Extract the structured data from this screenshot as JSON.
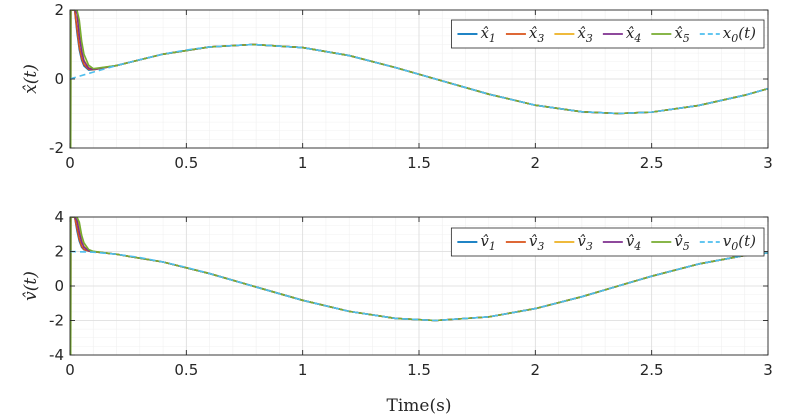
{
  "chart_data": [
    {
      "type": "line",
      "ylabel": "x̂(t)",
      "xlabel": "",
      "xlim": [
        0,
        3
      ],
      "ylim": [
        -2,
        2
      ],
      "xticks": [
        "0",
        "0.5",
        "1",
        "1.5",
        "2",
        "2.5",
        "3"
      ],
      "yticks": [
        "-2",
        "0",
        "2"
      ],
      "grid": true,
      "legend_position": "top-right, single row",
      "reference_function": "x0(t) = sin(2t)",
      "series": [
        {
          "name": "x̂1",
          "color": "#0072BD",
          "style": "solid",
          "x": [
            0,
            0.003,
            0.0035,
            0.01,
            0.02,
            0.03,
            0.04,
            0.05,
            0.06,
            0.08,
            0.1,
            0.2,
            0.4,
            0.6,
            0.785,
            1.0,
            1.2,
            1.4,
            1.571,
            1.8,
            2.0,
            2.2,
            2.356,
            2.5,
            2.7,
            2.9,
            3.0
          ],
          "y": [
            -2,
            -2,
            2,
            2,
            2,
            1.35,
            0.85,
            0.55,
            0.38,
            0.26,
            0.27,
            0.39,
            0.72,
            0.93,
            1.0,
            0.91,
            0.68,
            0.33,
            0.0,
            -0.44,
            -0.76,
            -0.95,
            -1.0,
            -0.96,
            -0.77,
            -0.47,
            -0.28
          ]
        },
        {
          "name": "x̂3",
          "color": "#D95319",
          "style": "solid",
          "x": [
            0,
            0.003,
            0.0035,
            0.01,
            0.02,
            0.03,
            0.04,
            0.05,
            0.06,
            0.08,
            0.1,
            0.2,
            0.4,
            0.6,
            0.785,
            1.0,
            1.2,
            1.4,
            1.571,
            1.8,
            2.0,
            2.2,
            2.356,
            2.5,
            2.7,
            2.9,
            3.0
          ],
          "y": [
            -2,
            -2,
            2,
            2,
            2,
            1.45,
            0.92,
            0.6,
            0.42,
            0.28,
            0.27,
            0.39,
            0.72,
            0.93,
            1.0,
            0.91,
            0.68,
            0.33,
            0.0,
            -0.44,
            -0.76,
            -0.95,
            -1.0,
            -0.96,
            -0.77,
            -0.47,
            -0.28
          ]
        },
        {
          "name": "x̂3",
          "color": "#EDB120",
          "style": "solid",
          "x": [
            0,
            0.003,
            0.0035,
            0.01,
            0.02,
            0.03,
            0.04,
            0.05,
            0.06,
            0.08,
            0.1,
            0.2,
            0.4,
            0.6,
            0.785,
            1.0,
            1.2,
            1.4,
            1.571,
            1.8,
            2.0,
            2.2,
            2.356,
            2.5,
            2.7,
            2.9,
            3.0
          ],
          "y": [
            -2,
            -2,
            2,
            2,
            2,
            2,
            1.35,
            0.85,
            0.55,
            0.33,
            0.29,
            0.39,
            0.72,
            0.93,
            1.0,
            0.91,
            0.68,
            0.33,
            0.0,
            -0.44,
            -0.76,
            -0.95,
            -1.0,
            -0.96,
            -0.77,
            -0.47,
            -0.28
          ]
        },
        {
          "name": "x̂4",
          "color": "#7E2F8E",
          "style": "solid",
          "x": [
            0,
            0.003,
            0.0035,
            0.01,
            0.02,
            0.03,
            0.04,
            0.05,
            0.06,
            0.08,
            0.1,
            0.2,
            0.4,
            0.6,
            0.785,
            1.0,
            1.2,
            1.4,
            1.571,
            1.8,
            2.0,
            2.2,
            2.356,
            2.5,
            2.7,
            2.9,
            3.0
          ],
          "y": [
            -2,
            -2,
            2,
            2,
            2,
            1.9,
            1.25,
            0.8,
            0.52,
            0.31,
            0.28,
            0.39,
            0.72,
            0.93,
            1.0,
            0.91,
            0.68,
            0.33,
            0.0,
            -0.44,
            -0.76,
            -0.95,
            -1.0,
            -0.96,
            -0.77,
            -0.47,
            -0.28
          ]
        },
        {
          "name": "x̂5",
          "color": "#77AC30",
          "style": "solid",
          "x": [
            0,
            0.003,
            0.0035,
            0.01,
            0.02,
            0.03,
            0.04,
            0.05,
            0.06,
            0.08,
            0.1,
            0.2,
            0.4,
            0.6,
            0.785,
            1.0,
            1.2,
            1.4,
            1.571,
            1.8,
            2.0,
            2.2,
            2.356,
            2.5,
            2.7,
            2.9,
            3.0
          ],
          "y": [
            -2,
            -2,
            2,
            2,
            2,
            2,
            1.7,
            1.1,
            0.72,
            0.4,
            0.3,
            0.39,
            0.72,
            0.93,
            1.0,
            0.91,
            0.68,
            0.33,
            0.0,
            -0.44,
            -0.76,
            -0.95,
            -1.0,
            -0.96,
            -0.77,
            -0.47,
            -0.28
          ]
        },
        {
          "name": "x0(t)",
          "color": "#4DBEEE",
          "style": "dashed",
          "x": [
            0,
            0.1,
            0.2,
            0.3,
            0.4,
            0.5,
            0.6,
            0.785,
            1.0,
            1.2,
            1.4,
            1.571,
            1.8,
            2.0,
            2.2,
            2.356,
            2.5,
            2.7,
            2.9,
            3.0
          ],
          "y": [
            0,
            0.2,
            0.39,
            0.56,
            0.72,
            0.84,
            0.93,
            1.0,
            0.91,
            0.68,
            0.33,
            0.0,
            -0.44,
            -0.76,
            -0.95,
            -1.0,
            -0.96,
            -0.77,
            -0.47,
            -0.28
          ]
        }
      ]
    },
    {
      "type": "line",
      "ylabel": "v̂(t)",
      "xlabel": "Time(s)",
      "xlim": [
        0,
        3
      ],
      "ylim": [
        -4,
        4
      ],
      "xticks": [
        "0",
        "0.5",
        "1",
        "1.5",
        "2",
        "2.5",
        "3"
      ],
      "yticks": [
        "-4",
        "-2",
        "0",
        "2",
        "4"
      ],
      "grid": true,
      "legend_position": "top-right, single row",
      "reference_function": "v0(t) = 2cos(2t)",
      "series": [
        {
          "name": "v̂1",
          "color": "#0072BD",
          "style": "solid",
          "x": [
            0,
            0.003,
            0.0035,
            0.01,
            0.02,
            0.03,
            0.04,
            0.05,
            0.06,
            0.08,
            0.1,
            0.2,
            0.4,
            0.6,
            0.785,
            1.0,
            1.2,
            1.4,
            1.571,
            1.8,
            2.0,
            2.2,
            2.356,
            2.5,
            2.7,
            2.9,
            3.0
          ],
          "y": [
            -4,
            -4,
            4,
            4,
            4,
            3.2,
            2.6,
            2.25,
            2.1,
            2.02,
            1.99,
            1.84,
            1.39,
            0.72,
            0.0,
            -0.83,
            -1.47,
            -1.88,
            -2.0,
            -1.79,
            -1.31,
            -0.62,
            0.0,
            0.57,
            1.27,
            1.77,
            1.92
          ]
        },
        {
          "name": "v̂3",
          "color": "#D95319",
          "style": "solid",
          "x": [
            0,
            0.003,
            0.0035,
            0.01,
            0.02,
            0.03,
            0.04,
            0.05,
            0.06,
            0.08,
            0.1,
            0.2,
            0.4,
            0.6,
            0.785,
            1.0,
            1.2,
            1.4,
            1.571,
            1.8,
            2.0,
            2.2,
            2.356,
            2.5,
            2.7,
            2.9,
            3.0
          ],
          "y": [
            -4,
            -4,
            4,
            4,
            4,
            3.35,
            2.7,
            2.3,
            2.12,
            2.03,
            1.99,
            1.84,
            1.39,
            0.72,
            0.0,
            -0.83,
            -1.47,
            -1.88,
            -2.0,
            -1.79,
            -1.31,
            -0.62,
            0.0,
            0.57,
            1.27,
            1.77,
            1.92
          ]
        },
        {
          "name": "v̂3",
          "color": "#EDB120",
          "style": "solid",
          "x": [
            0,
            0.003,
            0.0035,
            0.01,
            0.02,
            0.03,
            0.04,
            0.05,
            0.06,
            0.08,
            0.1,
            0.2,
            0.4,
            0.6,
            0.785,
            1.0,
            1.2,
            1.4,
            1.571,
            1.8,
            2.0,
            2.2,
            2.356,
            2.5,
            2.7,
            2.9,
            3.0
          ],
          "y": [
            -4,
            -4,
            4,
            4,
            4,
            4,
            3.3,
            2.65,
            2.3,
            2.06,
            2.0,
            1.84,
            1.39,
            0.72,
            0.0,
            -0.83,
            -1.47,
            -1.88,
            -2.0,
            -1.79,
            -1.31,
            -0.62,
            0.0,
            0.57,
            1.27,
            1.77,
            1.92
          ]
        },
        {
          "name": "v̂4",
          "color": "#7E2F8E",
          "style": "solid",
          "x": [
            0,
            0.003,
            0.0035,
            0.01,
            0.02,
            0.03,
            0.04,
            0.05,
            0.06,
            0.08,
            0.1,
            0.2,
            0.4,
            0.6,
            0.785,
            1.0,
            1.2,
            1.4,
            1.571,
            1.8,
            2.0,
            2.2,
            2.356,
            2.5,
            2.7,
            2.9,
            3.0
          ],
          "y": [
            -4,
            -4,
            4,
            4,
            4,
            3.8,
            3.1,
            2.55,
            2.25,
            2.05,
            2.0,
            1.84,
            1.39,
            0.72,
            0.0,
            -0.83,
            -1.47,
            -1.88,
            -2.0,
            -1.79,
            -1.31,
            -0.62,
            0.0,
            0.57,
            1.27,
            1.77,
            1.92
          ]
        },
        {
          "name": "v̂5",
          "color": "#77AC30",
          "style": "solid",
          "x": [
            0,
            0.003,
            0.0035,
            0.01,
            0.02,
            0.03,
            0.04,
            0.05,
            0.06,
            0.08,
            0.1,
            0.2,
            0.4,
            0.6,
            0.785,
            1.0,
            1.2,
            1.4,
            1.571,
            1.8,
            2.0,
            2.2,
            2.356,
            2.5,
            2.7,
            2.9,
            3.0
          ],
          "y": [
            -4,
            -4,
            4,
            4,
            4,
            4,
            3.7,
            2.95,
            2.5,
            2.12,
            2.01,
            1.84,
            1.39,
            0.72,
            0.0,
            -0.83,
            -1.47,
            -1.88,
            -2.0,
            -1.79,
            -1.31,
            -0.62,
            0.0,
            0.57,
            1.27,
            1.77,
            1.92
          ]
        },
        {
          "name": "v0(t)",
          "color": "#4DBEEE",
          "style": "dashed",
          "x": [
            0,
            0.1,
            0.2,
            0.3,
            0.4,
            0.5,
            0.6,
            0.785,
            1.0,
            1.2,
            1.4,
            1.571,
            1.8,
            2.0,
            2.2,
            2.356,
            2.5,
            2.7,
            2.9,
            3.0
          ],
          "y": [
            2.0,
            1.96,
            1.84,
            1.65,
            1.39,
            1.08,
            0.72,
            0.0,
            -0.83,
            -1.47,
            -1.88,
            -2.0,
            -1.79,
            -1.31,
            -0.62,
            0.0,
            0.57,
            1.27,
            1.77,
            1.92
          ]
        }
      ]
    }
  ]
}
